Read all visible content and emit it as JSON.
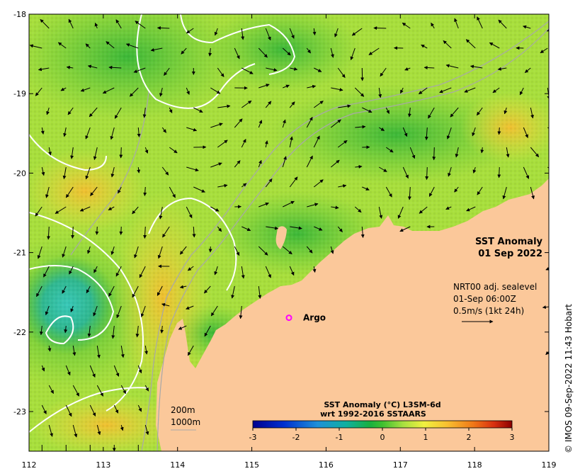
{
  "map": {
    "title": "SST Anomaly",
    "date": "01 Sep 2022",
    "lat_labels": [
      "-18",
      "-19",
      "-20",
      "-21",
      "-22",
      "-23"
    ],
    "lon_labels": [
      "112",
      "113",
      "114",
      "115",
      "116",
      "117",
      "118",
      "119"
    ],
    "lat_range": [
      -23.5,
      -18
    ],
    "lon_range": [
      112,
      119
    ]
  },
  "current_info": {
    "line1": "NRT00 adj. sealevel",
    "line2": "01-Sep 06:00Z",
    "line3": "0.5m/s (1kt 24h)"
  },
  "argo": {
    "label": "Argo",
    "lon": 115.5,
    "lat": -21.82,
    "color": "#ff00ff"
  },
  "depth_legend": {
    "shallow": "200m",
    "deep": "1000m"
  },
  "colorbar": {
    "title": "SST Anomaly (°C) L3SM-6d",
    "subtitle": "wrt 1992-2016 SSTAARS",
    "ticks": [
      "-3",
      "-2",
      "-1",
      "0",
      "1",
      "2",
      "3"
    ],
    "range": [
      -3,
      3
    ]
  },
  "copyright": "© IMOS 09-Sep-2022 11:43 Hobart",
  "colors": {
    "land": "#fbc89a",
    "sea_base": "#a8df3c",
    "contour": "#ffffff",
    "isobath": "#a8a8a8"
  }
}
